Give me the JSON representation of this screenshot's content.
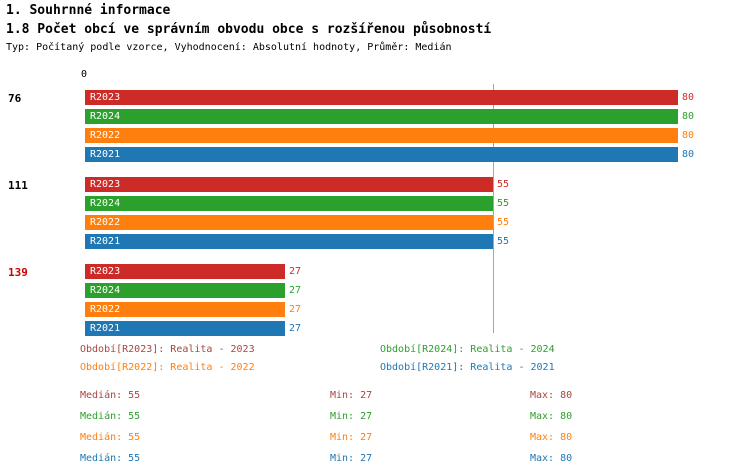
{
  "page": {
    "title": "1. Souhrnné informace",
    "chart_title": "1.8 Počet obcí ve správním obvodu obce s rozšířenou působností",
    "meta_line": "Typ: Počítaný podle vzorce, Vyhodnocení: Absolutní hodnoty, Průměr: Medián"
  },
  "axis": {
    "zero_label": "0"
  },
  "chart_data": {
    "type": "bar",
    "orientation": "horizontal",
    "title": "1.8 Počet obcí ve správním obvodu obce s rozšířenou působností",
    "xlim": [
      0,
      80
    ],
    "grid": false,
    "median_line_value": 55,
    "series_order": [
      "R2023",
      "R2024",
      "R2022",
      "R2021"
    ],
    "series_colors": {
      "R2023": "#cc2b28",
      "R2024": "#2ca02c",
      "R2022": "#ff7f0e",
      "R2021": "#1f77b4"
    },
    "groups": [
      {
        "label": "76",
        "label_color": "#000000",
        "values": {
          "R2023": 80,
          "R2024": 80,
          "R2022": 80,
          "R2021": 80
        }
      },
      {
        "label": "111",
        "label_color": "#000000",
        "values": {
          "R2023": 55,
          "R2024": 55,
          "R2022": 55,
          "R2021": 55
        }
      },
      {
        "label": "139",
        "label_color": "#cc0000",
        "values": {
          "R2023": 27,
          "R2024": 27,
          "R2022": 27,
          "R2021": 27
        }
      }
    ]
  },
  "legend": {
    "items": [
      {
        "label": "Období[R2023]: Realita - 2023",
        "color": "#a94442"
      },
      {
        "label": "Období[R2024]: Realita - 2024",
        "color": "#2ca02c"
      },
      {
        "label": "Období[R2022]: Realita - 2022",
        "color": "#ff7f0e"
      },
      {
        "label": "Období[R2021]: Realita - 2021",
        "color": "#1f77b4"
      }
    ]
  },
  "stats": {
    "rows": [
      {
        "median": "Medián: 55",
        "min": "Min: 27",
        "max": "Max: 80",
        "color": "#a94442"
      },
      {
        "median": "Medián: 55",
        "min": "Min: 27",
        "max": "Max: 80",
        "color": "#2ca02c"
      },
      {
        "median": "Medián: 55",
        "min": "Min: 27",
        "max": "Max: 80",
        "color": "#ff7f0e"
      },
      {
        "median": "Medián: 55",
        "min": "Min: 27",
        "max": "Max: 80",
        "color": "#1f77b4"
      }
    ]
  }
}
